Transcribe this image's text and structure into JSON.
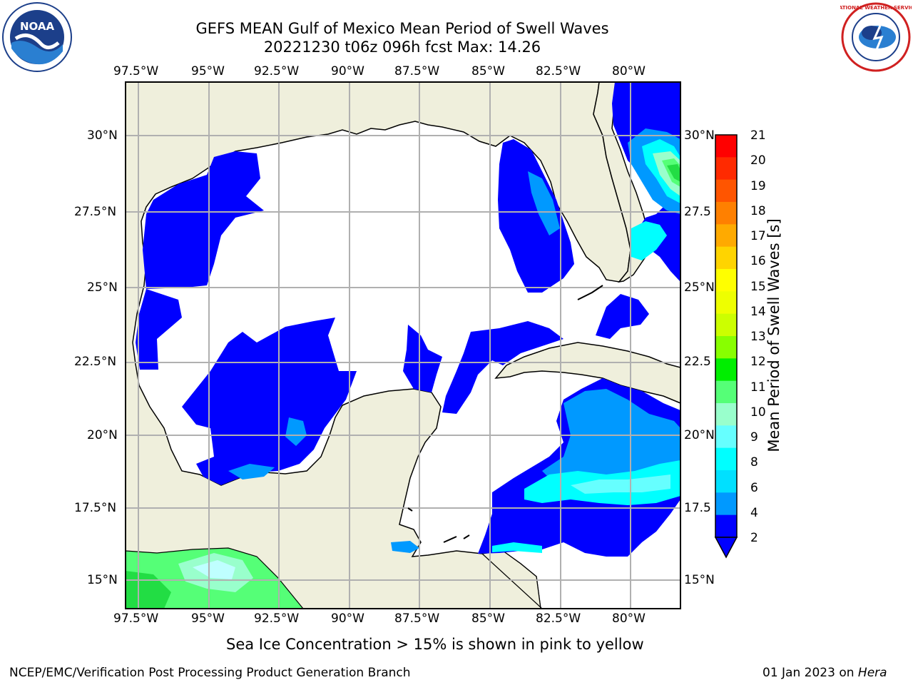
{
  "title_line1": "GEFS MEAN Gulf of Mexico Mean Period of Swell Waves",
  "title_line2": "20221230 t06z 096h fcst   Max: 14.26",
  "logos": {
    "left": "noaa-logo",
    "right": "nws-logo",
    "left_text": "NOAA",
    "right_text": "NATIONAL WEATHER SERVICE"
  },
  "map": {
    "lon_ticks": [
      "97.5°W",
      "95°W",
      "92.5°W",
      "90°W",
      "87.5°W",
      "85°W",
      "82.5°W",
      "80°W"
    ],
    "lat_ticks_left": [
      "30°N",
      "27.5°N",
      "25°N",
      "22.5°N",
      "20°N",
      "17.5°N",
      "15°N"
    ],
    "lat_ticks_right": [
      "30°N",
      "27.5",
      "25°N",
      "22.5",
      "20°N",
      "17.5",
      "15°N"
    ],
    "colors": {
      "land": "#efefdc",
      "ocean": "#ffffff",
      "grid": "#b0b0b0",
      "coast": "#000000"
    }
  },
  "colorbar": {
    "label": "Mean Period of Swell Waves [s]",
    "ticks": [
      "21",
      "20",
      "19",
      "18",
      "17",
      "16",
      "15",
      "14",
      "13",
      "12",
      "11",
      "10",
      "9",
      "8",
      "6",
      "4",
      "2"
    ],
    "colors": [
      "#ff0000",
      "#ff2a00",
      "#ff5500",
      "#ff8000",
      "#ffaa00",
      "#ffd400",
      "#ffff00",
      "#eeff00",
      "#ccff00",
      "#88ff00",
      "#00ee00",
      "#55ff77",
      "#99ffcc",
      "#66ffff",
      "#00ffff",
      "#00e0ff",
      "#0099ff",
      "#0000ff"
    ]
  },
  "ice_note": "Sea Ice Concentration > 15% is shown in pink to yellow",
  "footer_left": "NCEP/EMC/Verification Post Processing Product Generation Branch",
  "footer_right_date": "01 Jan 2023 on",
  "footer_right_host": "Hera"
}
